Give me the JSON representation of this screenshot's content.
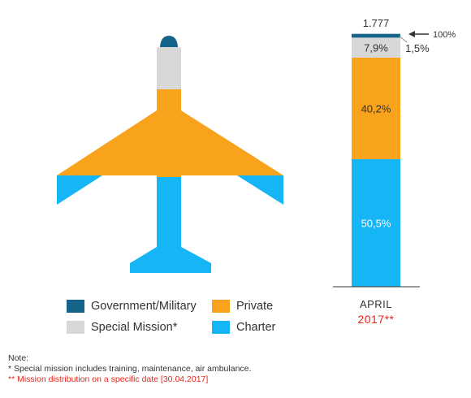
{
  "chart_data": {
    "type": "bar",
    "stacked": true,
    "categories": [
      "APRIL"
    ],
    "category_year": "2017**",
    "total_label": "1.777",
    "top_annotation": "100%",
    "series": [
      {
        "name": "Charter",
        "value": 50.5,
        "label": "50,5%",
        "color": "#16b5f5"
      },
      {
        "name": "Private",
        "value": 40.2,
        "label": "40,2%",
        "color": "#f9a21b"
      },
      {
        "name": "Special Mission*",
        "value": 7.9,
        "label": "7,9%",
        "color": "#d8d8d8"
      },
      {
        "name": "Government/Military",
        "value": 1.5,
        "label": "1,5%",
        "color": "#15648a"
      }
    ],
    "ylim": [
      0,
      100
    ],
    "legend": [
      {
        "name": "Government/Military",
        "color": "#15648a"
      },
      {
        "name": "Private",
        "color": "#f9a21b"
      },
      {
        "name": "Special Mission*",
        "color": "#d8d8d8"
      },
      {
        "name": "Charter",
        "color": "#16b5f5"
      }
    ],
    "legend_position": "bottom-left",
    "grid": false
  },
  "notes": {
    "heading": "Note:",
    "line1": "* Special mission includes training, maintenance, air ambulance.",
    "line2": "** Mission distribution on a specific date [30.04.2017]"
  }
}
